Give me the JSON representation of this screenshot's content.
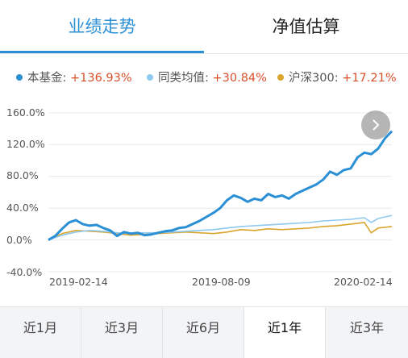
{
  "tabs": {
    "performance": "业绩走势",
    "nav_estimate": "净值估算"
  },
  "legend": [
    {
      "name": "本基金",
      "value": "+136.93%",
      "color": "#2b8fd6"
    },
    {
      "name": "同类均值",
      "value": "+30.84%",
      "color": "#8fc9ef"
    },
    {
      "name": "沪深300",
      "value": "+17.21%",
      "color": "#d9a52e"
    }
  ],
  "next_icon": "chevron-right-icon",
  "ranges": [
    "近1月",
    "近3月",
    "近6月",
    "近1年",
    "近3年"
  ],
  "active_range": "近1年",
  "chart_data": {
    "type": "line",
    "y_ticks": [
      "160.0%",
      "120.0%",
      "80.0%",
      "40.0%",
      "0.0%",
      "-40.0%"
    ],
    "x_ticks": [
      "2019-02-14",
      "2019-08-09",
      "2020-02-14"
    ],
    "ylim": [
      -40,
      160
    ],
    "xlim": [
      0,
      100
    ],
    "grid": true,
    "series": [
      {
        "name": "本基金",
        "color": "#2b8fd6",
        "x": [
          0,
          2,
          4,
          6,
          8,
          10,
          12,
          14,
          16,
          18,
          20,
          22,
          24,
          26,
          28,
          30,
          32,
          34,
          36,
          38,
          40,
          42,
          44,
          46,
          48,
          50,
          52,
          54,
          56,
          58,
          60,
          62,
          64,
          66,
          68,
          70,
          72,
          74,
          76,
          78,
          80,
          82,
          84,
          86,
          88,
          90,
          92,
          94,
          96,
          98,
          100
        ],
        "y": [
          0,
          5,
          14,
          22,
          25,
          20,
          18,
          19,
          15,
          12,
          5,
          10,
          8,
          9,
          6,
          7,
          9,
          11,
          12,
          15,
          16,
          20,
          24,
          29,
          34,
          40,
          50,
          56,
          53,
          48,
          52,
          50,
          58,
          54,
          56,
          52,
          58,
          62,
          66,
          70,
          76,
          86,
          82,
          88,
          90,
          104,
          110,
          108,
          115,
          128,
          137
        ]
      },
      {
        "name": "同类均值",
        "color": "#8fc9ef",
        "x": [
          0,
          4,
          8,
          12,
          16,
          20,
          24,
          28,
          32,
          36,
          40,
          44,
          48,
          52,
          56,
          60,
          64,
          68,
          72,
          76,
          80,
          84,
          88,
          92,
          94,
          96,
          100
        ],
        "y": [
          0,
          6,
          10,
          12,
          11,
          9,
          8,
          9,
          9,
          10,
          11,
          12,
          13,
          15,
          17,
          18,
          19,
          20,
          21,
          22,
          24,
          25,
          26,
          28,
          22,
          27,
          31
        ]
      },
      {
        "name": "沪深300",
        "color": "#d9a52e",
        "x": [
          0,
          4,
          8,
          12,
          16,
          20,
          24,
          28,
          32,
          36,
          40,
          44,
          48,
          52,
          56,
          60,
          64,
          68,
          72,
          76,
          80,
          84,
          88,
          92,
          94,
          96,
          100
        ],
        "y": [
          0,
          8,
          12,
          11,
          10,
          8,
          6,
          7,
          8,
          9,
          10,
          9,
          8,
          10,
          13,
          12,
          14,
          13,
          14,
          15,
          17,
          18,
          20,
          22,
          9,
          15,
          17
        ]
      }
    ]
  }
}
